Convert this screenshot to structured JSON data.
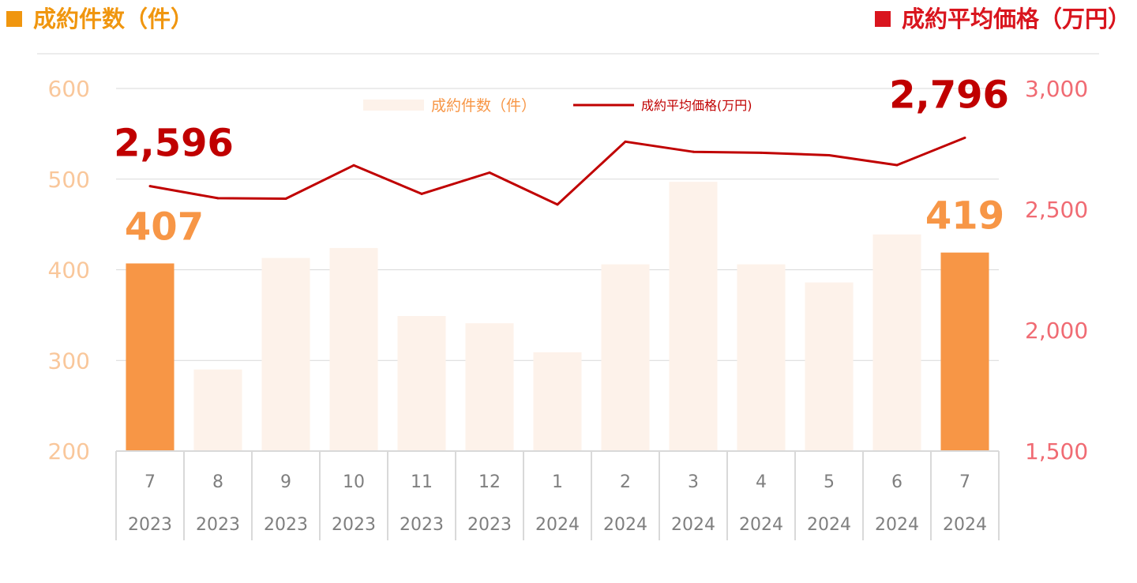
{
  "header": {
    "left_title": "成約件数（件）",
    "right_title": "成約平均価格（万円）"
  },
  "colors": {
    "count_accent": "#f0960f",
    "price_accent": "#d9151e",
    "bar_highlight": "#f79646",
    "bar_muted": "#fdf2ea",
    "line": "#c00000",
    "left_axis_text": "#f9c79b",
    "right_axis_text": "#f06b73",
    "grid": "#d9d9d9",
    "tick_text": "#7f7f7f"
  },
  "chart_data": {
    "type": "bar+line",
    "categories": [
      {
        "month": "7",
        "year": "2023"
      },
      {
        "month": "8",
        "year": "2023"
      },
      {
        "month": "9",
        "year": "2023"
      },
      {
        "month": "10",
        "year": "2023"
      },
      {
        "month": "11",
        "year": "2023"
      },
      {
        "month": "12",
        "year": "2023"
      },
      {
        "month": "1",
        "year": "2024"
      },
      {
        "month": "2",
        "year": "2024"
      },
      {
        "month": "3",
        "year": "2024"
      },
      {
        "month": "4",
        "year": "2024"
      },
      {
        "month": "5",
        "year": "2024"
      },
      {
        "month": "6",
        "year": "2024"
      },
      {
        "month": "7",
        "year": "2024"
      }
    ],
    "series": [
      {
        "name": "成約件数（件）",
        "type": "bar",
        "axis": "left",
        "values": [
          407,
          290,
          413,
          424,
          349,
          341,
          309,
          406,
          497,
          406,
          386,
          439,
          419
        ],
        "highlight": [
          true,
          false,
          false,
          false,
          false,
          false,
          false,
          false,
          false,
          false,
          false,
          false,
          true
        ]
      },
      {
        "name": "成約平均価格(万円)",
        "type": "line",
        "axis": "right",
        "values": [
          2596,
          2546,
          2544,
          2682,
          2564,
          2652,
          2520,
          2780,
          2738,
          2734,
          2724,
          2683,
          2796
        ]
      }
    ],
    "left_axis": {
      "min": 200,
      "max": 600,
      "ticks": [
        "200",
        "300",
        "400",
        "500",
        "600"
      ]
    },
    "right_axis": {
      "min": 1500,
      "max": 3000,
      "ticks": [
        "1,500",
        "2,000",
        "2,500",
        "3,000"
      ]
    },
    "annotations": [
      {
        "series": 1,
        "index": 0,
        "text": "2,596"
      },
      {
        "series": 1,
        "index": 12,
        "text": "2,796"
      },
      {
        "series": 0,
        "index": 0,
        "text": "407"
      },
      {
        "series": 0,
        "index": 12,
        "text": "419"
      }
    ],
    "legend": {
      "position": "top-center",
      "bar_label": "成約件数（件）",
      "line_label": "成約平均価格(万円)"
    },
    "grid": true
  }
}
